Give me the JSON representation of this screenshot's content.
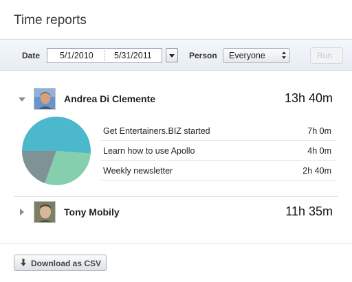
{
  "page": {
    "title": "Time reports"
  },
  "filters": {
    "date_label": "Date",
    "date_from": "5/1/2010",
    "date_to": "5/31/2011",
    "person_label": "Person",
    "person_selected": "Everyone",
    "run_label": "Run"
  },
  "people": [
    {
      "name": "Andrea Di Clemente",
      "total": "13h 40m",
      "expanded": true,
      "tasks": [
        {
          "name": "Get Entertainers.BIZ started",
          "time": "7h 0m",
          "minutes": 420,
          "color": "#4bb8cc"
        },
        {
          "name": "Learn how to use Apollo",
          "time": "4h 0m",
          "minutes": 240,
          "color": "#86cfae"
        },
        {
          "name": "Weekly newsletter",
          "time": "2h 40m",
          "minutes": 160,
          "color": "#7f9397"
        }
      ]
    },
    {
      "name": "Tony Mobily",
      "total": "11h 35m",
      "expanded": false,
      "tasks": []
    }
  ],
  "footer": {
    "download_label": "Download as CSV"
  },
  "colors": {
    "toolbar_bg": "#eaf0f6",
    "divider": "#e2e2e2"
  }
}
